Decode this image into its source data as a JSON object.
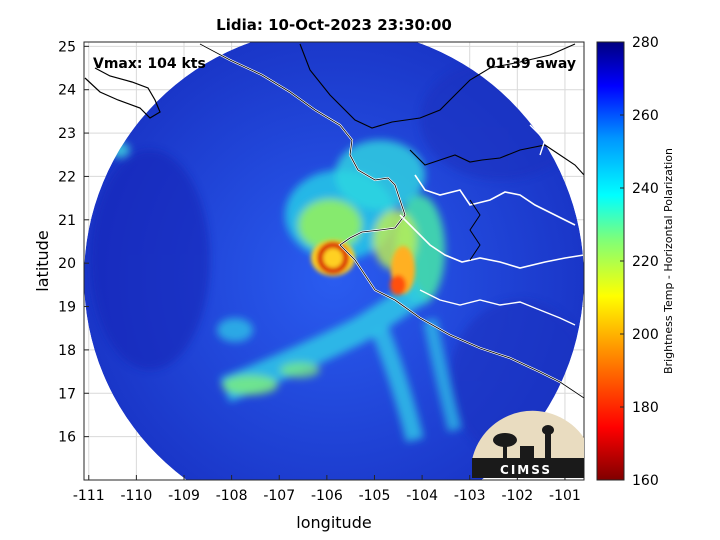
{
  "title": "Lidia: 10-Oct-2023 23:30:00",
  "vmax_label": "Vmax: 104 kts",
  "away_label": "01:39 away",
  "xlabel": "longitude",
  "ylabel": "latitude",
  "xticks": [
    "-111",
    "-110",
    "-109",
    "-108",
    "-107",
    "-106",
    "-105",
    "-104",
    "-103",
    "-102",
    "-101"
  ],
  "yticks": [
    "16",
    "17",
    "18",
    "19",
    "20",
    "21",
    "22",
    "23",
    "24",
    "25"
  ],
  "colorbar": {
    "label": "Brightness Temp - Horizontal Polarization",
    "ticks": [
      "160",
      "180",
      "200",
      "220",
      "240",
      "260",
      "280"
    ],
    "min": 160,
    "max": 280
  },
  "logo_text": "CIMSS",
  "colors": {
    "outside": "#ffffff",
    "swath_base": "#1e40d8",
    "coast": "#ffffff",
    "border": "#000000",
    "eye_red": "#c80000"
  }
}
